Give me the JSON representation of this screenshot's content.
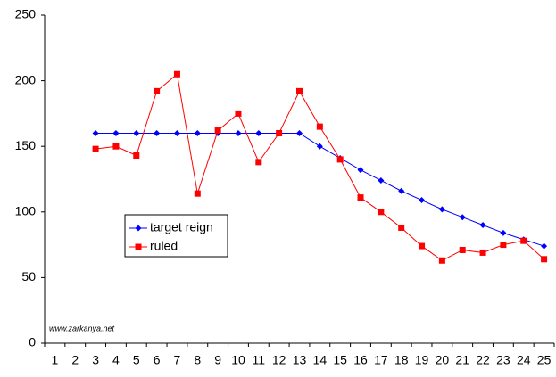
{
  "chart_data": {
    "type": "line",
    "annotation": "www.zarkanya.net",
    "categories": [
      "1",
      "2",
      "3",
      "4",
      "5",
      "6",
      "7",
      "8",
      "9",
      "10",
      "11",
      "12",
      "13",
      "14",
      "15",
      "16",
      "17",
      "18",
      "19",
      "20",
      "21",
      "22",
      "23",
      "24",
      "25"
    ],
    "series": [
      {
        "name": "target reign",
        "color": "#0000ff",
        "marker": "diamond",
        "values": [
          null,
          null,
          160,
          160,
          160,
          160,
          160,
          160,
          160,
          160,
          160,
          160,
          160,
          150,
          141,
          132,
          124,
          116,
          109,
          102,
          96,
          90,
          84,
          79,
          74
        ]
      },
      {
        "name": "ruled",
        "color": "#ff0000",
        "marker": "square",
        "values": [
          null,
          null,
          148,
          150,
          143,
          192,
          205,
          114,
          162,
          175,
          138,
          160,
          192,
          165,
          140,
          111,
          100,
          88,
          74,
          63,
          71,
          69,
          75,
          78,
          64
        ]
      }
    ],
    "ylim": [
      0,
      250
    ],
    "yticks": [
      0,
      50,
      100,
      150,
      200,
      250
    ],
    "grid": false
  }
}
